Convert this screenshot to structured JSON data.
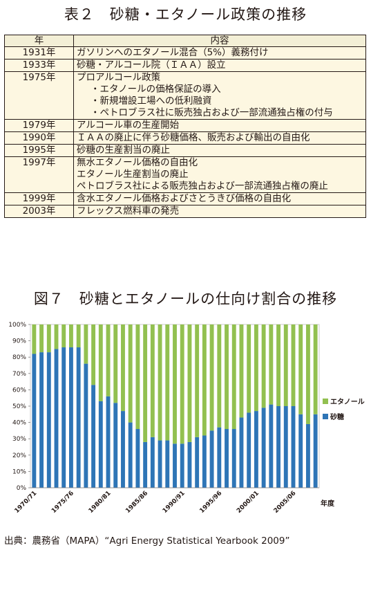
{
  "table_title": "表２　砂糖・エタノール政策の推移",
  "table": {
    "headers": [
      "年",
      "内容"
    ],
    "rows": [
      {
        "year": "1931年",
        "lines": [
          "ガソリンへのエタノール混合（5%）義務付け"
        ]
      },
      {
        "year": "1933年",
        "lines": [
          "砂糖・アルコール院（ＩＡＡ）設立"
        ]
      },
      {
        "year": "1975年",
        "lines": [
          "プロアルコール政策",
          "・エタノールの価格保証の導入",
          "・新規増設工場への低利融資",
          "・ペトロブラス社に販売独占および一部流通独占権の付与"
        ]
      },
      {
        "year": "1979年",
        "lines": [
          "アルコール車の生産開始"
        ]
      },
      {
        "year": "1990年",
        "lines": [
          "ＩＡＡの廃止に伴う砂糖価格、販売および輸出の自由化"
        ]
      },
      {
        "year": "1995年",
        "lines": [
          "砂糖の生産割当の廃止"
        ]
      },
      {
        "year": "1997年",
        "lines": [
          "無水エタノール価格の自由化",
          "エタノール生産割当の廃止",
          "ペトロブラス社による販売独占および一部流通独占権の廃止"
        ]
      },
      {
        "year": "1999年",
        "lines": [
          "含水エタノール価格およびさとうきび価格の自由化"
        ]
      },
      {
        "year": "2003年",
        "lines": [
          "フレックス燃料車の発売"
        ]
      }
    ]
  },
  "chart_title": "図７　砂糖とエタノールの仕向け割合の推移",
  "chart_data": {
    "type": "bar",
    "stacked": true,
    "percent": true,
    "x_unit_label": "年度",
    "ylim": [
      0,
      100
    ],
    "y_ticks": [
      "0%",
      "10%",
      "20%",
      "30%",
      "40%",
      "50%",
      "60%",
      "70%",
      "80%",
      "90%",
      "100%"
    ],
    "categories": [
      "1970/71",
      "1971/72",
      "1972/73",
      "1973/74",
      "1974/75",
      "1975/76",
      "1976/77",
      "1977/78",
      "1978/79",
      "1979/80",
      "1980/81",
      "1981/82",
      "1982/83",
      "1983/84",
      "1984/85",
      "1985/86",
      "1986/87",
      "1987/88",
      "1988/89",
      "1989/90",
      "1990/91",
      "1991/92",
      "1992/93",
      "1993/94",
      "1994/95",
      "1995/96",
      "1996/97",
      "1997/98",
      "1998/99",
      "1999/00",
      "2000/01",
      "2001/02",
      "2002/03",
      "2003/04",
      "2004/05",
      "2005/06",
      "2006/07",
      "2007/08",
      "2008/09"
    ],
    "x_tick_labels": [
      {
        "index": 0,
        "label": "1970/71"
      },
      {
        "index": 5,
        "label": "1975/76"
      },
      {
        "index": 10,
        "label": "1980/81"
      },
      {
        "index": 15,
        "label": "1985/86"
      },
      {
        "index": 20,
        "label": "1990/91"
      },
      {
        "index": 25,
        "label": "1995/96"
      },
      {
        "index": 30,
        "label": "2000/01"
      },
      {
        "index": 35,
        "label": "2005/06"
      }
    ],
    "series": [
      {
        "name": "砂糖",
        "color": "#2e75b6",
        "values": [
          82,
          83,
          83,
          85,
          86,
          86,
          86,
          76,
          63,
          53,
          56,
          52,
          47,
          40,
          36,
          28,
          31,
          29,
          29,
          27,
          27,
          28,
          31,
          32,
          35,
          37,
          36,
          36,
          43,
          46,
          47,
          49,
          51,
          50,
          50,
          50,
          45,
          39,
          45
        ]
      },
      {
        "name": "エタノール",
        "color": "#92c050",
        "values": [
          18,
          17,
          17,
          15,
          14,
          14,
          14,
          24,
          37,
          47,
          44,
          48,
          53,
          60,
          64,
          72,
          69,
          71,
          71,
          73,
          73,
          72,
          69,
          68,
          65,
          63,
          64,
          64,
          57,
          54,
          53,
          51,
          49,
          50,
          50,
          50,
          55,
          61,
          55
        ]
      }
    ],
    "legend_order": [
      "エタノール",
      "砂糖"
    ],
    "legend_position": "right"
  },
  "source": "出典：農務省（MAPA）“Agri Energy Statistical Yearbook 2009”"
}
